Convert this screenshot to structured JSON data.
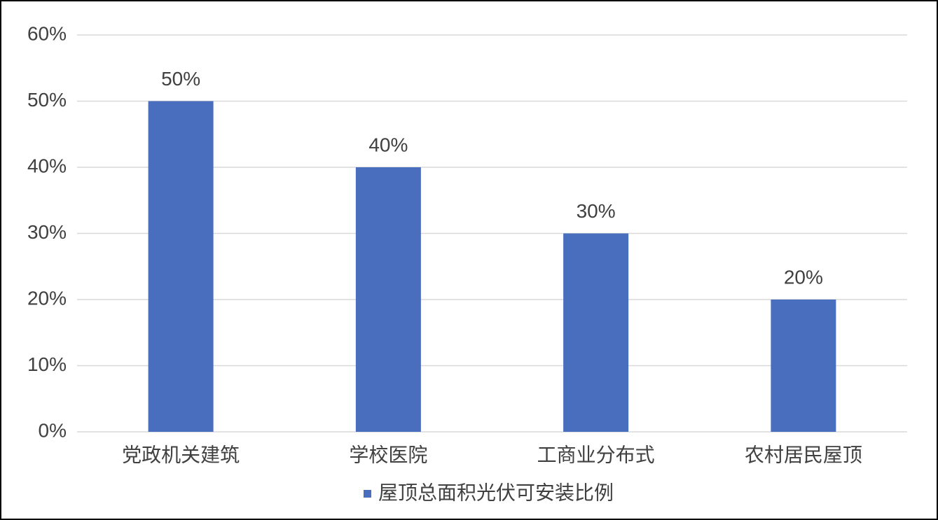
{
  "chart_data": {
    "type": "bar",
    "categories": [
      "党政机关建筑",
      "学校医院",
      "工商业分布式",
      "农村居民屋顶"
    ],
    "series": [
      {
        "name": "屋顶总面积光伏可安装比例",
        "color": "#4a6ebe",
        "values": [
          50,
          40,
          30,
          20
        ],
        "value_labels": [
          "50%",
          "40%",
          "30%",
          "20%"
        ]
      }
    ],
    "ylim": [
      0,
      60
    ],
    "yticks": [
      {
        "value": 0,
        "label": "0%"
      },
      {
        "value": 10,
        "label": "10%"
      },
      {
        "value": 20,
        "label": "20%"
      },
      {
        "value": 30,
        "label": "30%"
      },
      {
        "value": 40,
        "label": "40%"
      },
      {
        "value": 50,
        "label": "50%"
      },
      {
        "value": 60,
        "label": "60%"
      }
    ],
    "grid": true,
    "legend": "bottom"
  }
}
